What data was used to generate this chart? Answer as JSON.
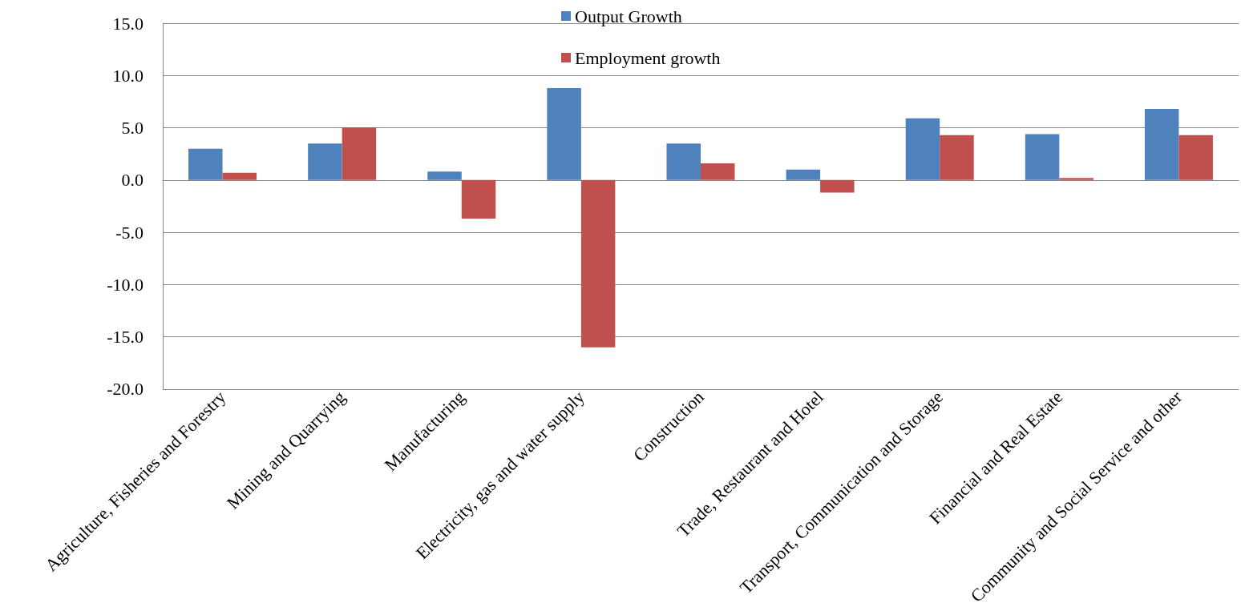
{
  "chart_data": {
    "type": "bar",
    "categories": [
      "Agriculture, Fisheries and Forestry",
      "Mining and Quarrying",
      "Manufacturing",
      "Electricity, gas and water supply",
      "Construction",
      "Trade, Restaurant and Hotel",
      "Transport, Communication and Storage",
      "Financial and Real Estate",
      "Community and Social Service and other"
    ],
    "series": [
      {
        "name": "Output Growth",
        "color": "#4f81bd",
        "values": [
          3.0,
          3.5,
          0.8,
          8.8,
          3.5,
          1.0,
          5.9,
          4.4,
          6.8
        ]
      },
      {
        "name": "Employment growth",
        "color": "#c0504d",
        "values": [
          0.7,
          5.05,
          -3.7,
          -16.0,
          1.6,
          -1.2,
          4.3,
          0.2,
          4.3
        ]
      }
    ],
    "ylim": [
      -20,
      15
    ],
    "yticks": [
      {
        "value": -20,
        "label": "-20.0"
      },
      {
        "value": -15,
        "label": "-15.0"
      },
      {
        "value": -10,
        "label": "-10.0"
      },
      {
        "value": -5,
        "label": "-5.0"
      },
      {
        "value": 0,
        "label": "0.0"
      },
      {
        "value": 5,
        "label": "5.0"
      },
      {
        "value": 10,
        "label": "10.0"
      },
      {
        "value": 15,
        "label": "15.0"
      }
    ],
    "grid": "y",
    "legend": "top"
  }
}
